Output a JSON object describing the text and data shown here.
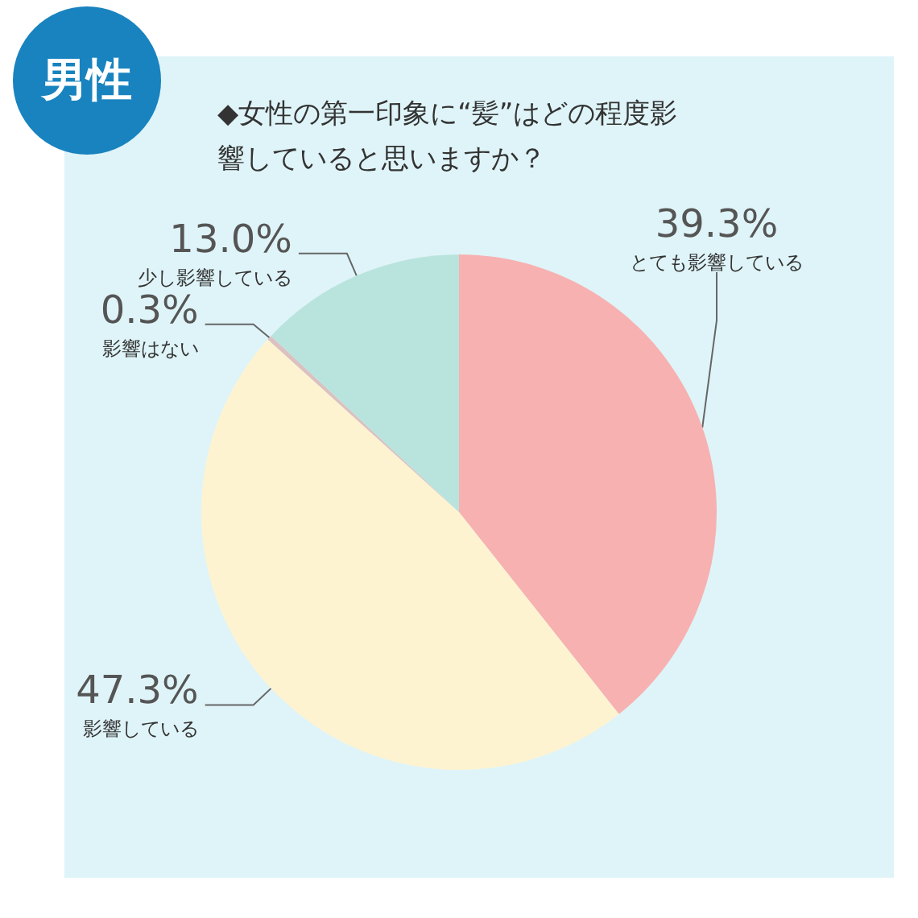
{
  "chart_data": {
    "type": "pie",
    "title": "◆女性の第一印象に“髪”はどの程度影響していると思いますか？",
    "annotations": [
      "男性"
    ],
    "categories": [
      "とても影響している",
      "影響している",
      "影響はない",
      "少し影響している"
    ],
    "values": [
      39.3,
      47.3,
      0.3,
      13.0
    ],
    "value_labels": [
      "39.3%",
      "47.3%",
      "0.3%",
      "13.0%"
    ],
    "colors": [
      "#f7b1b1",
      "#fef3d1",
      "#dcc1c1",
      "#b9e4dd"
    ],
    "legend": false
  }
}
